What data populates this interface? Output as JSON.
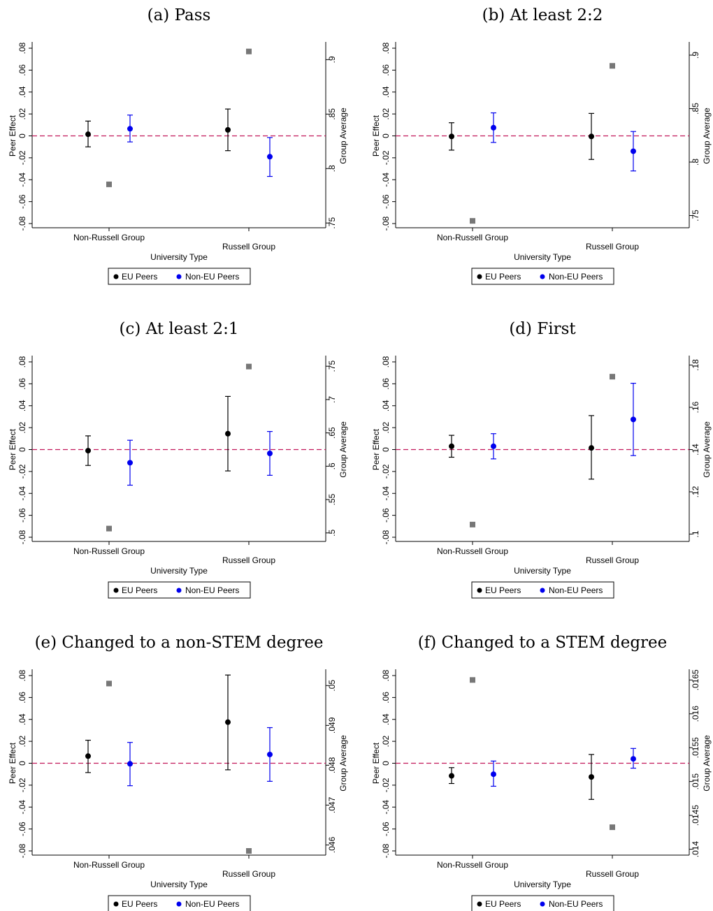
{
  "colors": {
    "eu": "#000000",
    "non_eu": "#0000ee",
    "group_avg": "#777777",
    "zero_line": "#c2185b",
    "axis": "#000000"
  },
  "chart_data": [
    {
      "type": "scatter",
      "title": "(a) Pass",
      "xlabel": "University Type",
      "ylabel_left": "Peer Effect",
      "ylabel_right": "Group Average",
      "categories": [
        "Non-Russell Group",
        "Russell Group"
      ],
      "left_ticks": [
        "-.08",
        "-.06",
        "-.04",
        "-.02",
        "0",
        ".02",
        ".04",
        ".06",
        ".08"
      ],
      "left_ylim": [
        -0.08,
        0.08
      ],
      "right_ticks": [
        ".75",
        ".8",
        ".85",
        ".9"
      ],
      "right_ylim": [
        0.7495,
        0.9105
      ],
      "legend": [
        "EU Peers",
        "Non-EU Peers"
      ],
      "series": [
        {
          "name": "EU Peers",
          "values": [
            0.0015,
            0.0055
          ],
          "ci_low": [
            -0.01,
            -0.0135
          ],
          "ci_high": [
            0.0135,
            0.0245
          ]
        },
        {
          "name": "Non-EU Peers",
          "values": [
            0.0065,
            -0.019
          ],
          "ci_low": [
            -0.0055,
            -0.037
          ],
          "ci_high": [
            0.019,
            -0.0015
          ]
        }
      ],
      "group_average": [
        0.7855,
        0.9075
      ]
    },
    {
      "type": "scatter",
      "title": "(b) At least 2:2",
      "xlabel": "University Type",
      "ylabel_left": "Peer Effect",
      "ylabel_right": "Group Average",
      "categories": [
        "Non-Russell Group",
        "Russell Group"
      ],
      "left_ticks": [
        "-.08",
        "-.06",
        "-.04",
        "-.02",
        "0",
        ".02",
        ".04",
        ".06",
        ".08"
      ],
      "left_ylim": [
        -0.08,
        0.08
      ],
      "right_ticks": [
        ".75",
        ".8",
        ".85",
        ".9"
      ],
      "right_ylim": [
        0.7425,
        0.9065
      ],
      "legend": [
        "EU Peers",
        "Non-EU Peers"
      ],
      "series": [
        {
          "name": "EU Peers",
          "values": [
            -0.0005,
            -0.0005
          ],
          "ci_low": [
            -0.013,
            -0.0215
          ],
          "ci_high": [
            0.012,
            0.0205
          ]
        },
        {
          "name": "Non-EU Peers",
          "values": [
            0.0075,
            -0.014
          ],
          "ci_low": [
            -0.006,
            -0.032
          ],
          "ci_high": [
            0.021,
            0.004
          ]
        }
      ],
      "group_average": [
        0.745,
        0.89
      ]
    },
    {
      "type": "scatter",
      "title": "(c) At least 2:1",
      "xlabel": "University Type",
      "ylabel_left": "Peer Effect",
      "ylabel_right": "Group Average",
      "categories": [
        "Non-Russell Group",
        "Russell Group"
      ],
      "left_ticks": [
        "-.08",
        "-.06",
        "-.04",
        "-.02",
        "0",
        ".02",
        ".04",
        ".06",
        ".08"
      ],
      "left_ylim": [
        -0.08,
        0.08
      ],
      "right_ticks": [
        ".5",
        ".55",
        ".6",
        ".65",
        ".7",
        ".75"
      ],
      "right_ylim": [
        0.4935,
        0.7565
      ],
      "legend": [
        "EU Peers",
        "Non-EU Peers"
      ],
      "series": [
        {
          "name": "EU Peers",
          "values": [
            -0.001,
            0.0145
          ],
          "ci_low": [
            -0.0145,
            -0.0195
          ],
          "ci_high": [
            0.0125,
            0.0485
          ]
        },
        {
          "name": "Non-EU Peers",
          "values": [
            -0.012,
            -0.0035
          ],
          "ci_low": [
            -0.0325,
            -0.0235
          ],
          "ci_high": [
            0.0085,
            0.0165
          ]
        }
      ],
      "group_average": [
        0.5065,
        0.7495
      ]
    },
    {
      "type": "scatter",
      "title": "(d) First",
      "xlabel": "University Type",
      "ylabel_left": "Peer Effect",
      "ylabel_right": "Group Average",
      "categories": [
        "Non-Russell Group",
        "Russell Group"
      ],
      "left_ticks": [
        "-.08",
        "-.06",
        "-.04",
        "-.02",
        "0",
        ".02",
        ".04",
        ".06",
        ".08"
      ],
      "left_ylim": [
        -0.08,
        0.08
      ],
      "right_ticks": [
        ".1",
        ".12",
        ".14",
        ".16",
        ".18"
      ],
      "right_ylim": [
        0.0985,
        0.1815
      ],
      "legend": [
        "EU Peers",
        "Non-EU Peers"
      ],
      "series": [
        {
          "name": "EU Peers",
          "values": [
            0.003,
            0.0015
          ],
          "ci_low": [
            -0.007,
            -0.027
          ],
          "ci_high": [
            0.013,
            0.031
          ]
        },
        {
          "name": "Non-EU Peers",
          "values": [
            0.003,
            0.0275
          ],
          "ci_low": [
            -0.0085,
            -0.0055
          ],
          "ci_high": [
            0.0145,
            0.0605
          ]
        }
      ],
      "group_average": [
        0.1045,
        0.1745
      ]
    },
    {
      "type": "scatter",
      "title": "(e) Changed to a non-STEM degree",
      "xlabel": "University Type",
      "ylabel_left": "Peer Effect",
      "ylabel_right": "Group Average",
      "categories": [
        "Non-Russell Group",
        "Russell Group"
      ],
      "left_ticks": [
        "-.08",
        "-.06",
        "-.04",
        "-.02",
        "0",
        ".02",
        ".04",
        ".06",
        ".08"
      ],
      "left_ylim": [
        -0.08,
        0.08
      ],
      "right_ticks": [
        ".046",
        ".047",
        ".048",
        ".049",
        ".05"
      ],
      "right_ylim": [
        0.04585,
        0.05025
      ],
      "legend": [
        "EU Peers",
        "Non-EU Peers"
      ],
      "series": [
        {
          "name": "EU Peers",
          "values": [
            0.0065,
            0.0375
          ],
          "ci_low": [
            -0.0085,
            -0.006
          ],
          "ci_high": [
            0.021,
            0.0805
          ]
        },
        {
          "name": "Non-EU Peers",
          "values": [
            -0.0005,
            0.008
          ],
          "ci_low": [
            -0.0205,
            -0.0165
          ],
          "ci_high": [
            0.019,
            0.0325
          ]
        }
      ],
      "group_average": [
        0.05005,
        0.04585
      ]
    },
    {
      "type": "scatter",
      "title": "(f) Changed to a STEM degree",
      "xlabel": "University Type",
      "ylabel_left": "Peer Effect",
      "ylabel_right": "Group Average",
      "categories": [
        "Non-Russell Group",
        "Russell Group"
      ],
      "left_ticks": [
        "-.08",
        "-.06",
        "-.04",
        "-.02",
        "0",
        ".02",
        ".04",
        ".06",
        ".08"
      ],
      "left_ylim": [
        -0.08,
        0.08
      ],
      "right_ticks": [
        ".014",
        ".0145",
        ".015",
        ".0155",
        ".016",
        ".0165"
      ],
      "right_ylim": [
        0.013975,
        0.016565
      ],
      "legend": [
        "EU Peers",
        "Non-EU Peers"
      ],
      "series": [
        {
          "name": "EU Peers",
          "values": [
            -0.0115,
            -0.0125
          ],
          "ci_low": [
            -0.0185,
            -0.033
          ],
          "ci_high": [
            -0.004,
            0.008
          ]
        },
        {
          "name": "Non-EU Peers",
          "values": [
            -0.01,
            0.004
          ],
          "ci_low": [
            -0.021,
            -0.0045
          ],
          "ci_high": [
            0.002,
            0.0135
          ]
        }
      ],
      "group_average": [
        0.0165,
        0.014325
      ]
    }
  ]
}
